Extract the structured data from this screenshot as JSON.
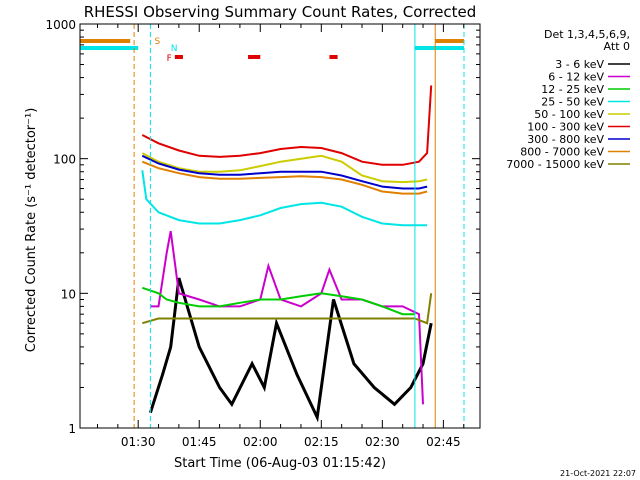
{
  "chart_data": {
    "type": "line",
    "title": "RHESSI Observing Summary Count Rates, Corrected",
    "xlabel": "Start Time (06-Aug-03 01:15:42)",
    "ylabel": "Corrected Count Rate (s⁻¹ detector⁻¹)",
    "y_scale": "log",
    "ylim": [
      1,
      1000
    ],
    "xlim": [
      "01:15:42",
      "02:54:00"
    ],
    "x_ticks": [
      "01:30",
      "01:45",
      "02:00",
      "02:15",
      "02:30",
      "02:45"
    ],
    "y_ticks": [
      "1",
      "10",
      "100",
      "1000"
    ],
    "legend_header": [
      "Det 1,3,4,5,6,9,",
      "Att 0"
    ],
    "legend_position": "right",
    "footer_date": "21-Oct-2021 22:07",
    "flag_labels": {
      "saa": "S",
      "night": "N",
      "flare": "F"
    },
    "series": [
      {
        "name": "3 - 6 keV",
        "color": "#000000",
        "x": [
          "01:33",
          "01:36",
          "01:38",
          "01:40",
          "01:45",
          "01:50",
          "01:53",
          "01:58",
          "02:01",
          "02:04",
          "02:09",
          "02:14",
          "02:18",
          "02:23",
          "02:28",
          "02:33",
          "02:37",
          "02:40",
          "02:42"
        ],
        "y": [
          1.3,
          2.5,
          4,
          13,
          4,
          2,
          1.5,
          3,
          2,
          6,
          2.5,
          1.2,
          9,
          3,
          2,
          1.5,
          2,
          3,
          6
        ]
      },
      {
        "name": "6 - 12 keV",
        "color": "#cc00cc",
        "x": [
          "01:33",
          "01:35",
          "01:37",
          "01:38",
          "01:40",
          "01:45",
          "01:50",
          "01:55",
          "02:00",
          "02:02",
          "02:05",
          "02:10",
          "02:15",
          "02:17",
          "02:20",
          "02:25",
          "02:30",
          "02:35",
          "02:39",
          "02:40"
        ],
        "y": [
          8,
          8,
          20,
          29,
          10,
          9,
          8,
          8,
          9,
          16,
          9,
          8,
          10,
          15,
          9,
          9,
          8,
          8,
          7,
          1.5
        ]
      },
      {
        "name": "12 - 25 keV",
        "color": "#00cc00",
        "x": [
          "01:31",
          "01:35",
          "01:37",
          "01:40",
          "01:45",
          "01:50",
          "01:55",
          "02:00",
          "02:05",
          "02:10",
          "02:15",
          "02:20",
          "02:25",
          "02:30",
          "02:35",
          "02:38"
        ],
        "y": [
          11,
          10,
          9,
          8.5,
          8,
          8,
          8.5,
          9,
          9,
          9.5,
          10,
          9.5,
          9,
          8,
          7,
          7
        ]
      },
      {
        "name": "25 - 50 keV",
        "color": "#00e5e5",
        "x": [
          "01:31",
          "01:32",
          "01:35",
          "01:40",
          "01:45",
          "01:50",
          "01:55",
          "02:00",
          "02:05",
          "02:10",
          "02:15",
          "02:20",
          "02:25",
          "02:30",
          "02:35",
          "02:39",
          "02:41"
        ],
        "y": [
          82,
          50,
          40,
          35,
          33,
          33,
          35,
          38,
          43,
          46,
          47,
          44,
          37,
          33,
          32,
          32,
          32
        ]
      },
      {
        "name": "50 - 100 keV",
        "color": "#cccc00",
        "x": [
          "01:31",
          "01:35",
          "01:40",
          "01:45",
          "01:50",
          "01:55",
          "02:00",
          "02:05",
          "02:10",
          "02:15",
          "02:20",
          "02:25",
          "02:30",
          "02:35",
          "02:39",
          "02:41"
        ],
        "y": [
          110,
          95,
          85,
          80,
          80,
          82,
          88,
          95,
          100,
          105,
          95,
          75,
          68,
          67,
          68,
          70
        ]
      },
      {
        "name": "100 - 300 keV",
        "color": "#e00000",
        "x": [
          "01:31",
          "01:35",
          "01:40",
          "01:45",
          "01:50",
          "01:55",
          "02:00",
          "02:05",
          "02:10",
          "02:15",
          "02:20",
          "02:25",
          "02:30",
          "02:35",
          "02:39",
          "02:41",
          "02:42"
        ],
        "y": [
          150,
          130,
          115,
          105,
          103,
          105,
          110,
          118,
          122,
          120,
          110,
          95,
          90,
          90,
          95,
          110,
          350
        ]
      },
      {
        "name": "300 - 800 keV",
        "color": "#0000cc",
        "x": [
          "01:31",
          "01:35",
          "01:40",
          "01:45",
          "01:50",
          "01:55",
          "02:00",
          "02:05",
          "02:10",
          "02:15",
          "02:20",
          "02:25",
          "02:30",
          "02:35",
          "02:39",
          "02:41"
        ],
        "y": [
          105,
          92,
          83,
          78,
          76,
          76,
          78,
          80,
          80,
          80,
          75,
          68,
          62,
          60,
          60,
          62
        ]
      },
      {
        "name": "800 - 7000 keV",
        "color": "#e08000",
        "x": [
          "01:31",
          "01:35",
          "01:40",
          "01:45",
          "01:50",
          "01:55",
          "02:00",
          "02:05",
          "02:10",
          "02:15",
          "02:20",
          "02:25",
          "02:30",
          "02:35",
          "02:39",
          "02:41"
        ],
        "y": [
          95,
          85,
          78,
          73,
          71,
          71,
          72,
          73,
          74,
          73,
          70,
          64,
          57,
          55,
          55,
          57
        ]
      },
      {
        "name": "7000 - 15000 keV",
        "color": "#808000",
        "x": [
          "01:31",
          "01:35",
          "01:40",
          "01:45",
          "01:50",
          "01:55",
          "02:00",
          "02:05",
          "02:10",
          "02:15",
          "02:20",
          "02:25",
          "02:30",
          "02:35",
          "02:38",
          "02:41",
          "02:42"
        ],
        "y": [
          6,
          6.5,
          6.5,
          6.5,
          6.5,
          6.5,
          6.5,
          6.5,
          6.5,
          6.5,
          6.5,
          6.5,
          6.5,
          6.5,
          6.5,
          6,
          10
        ]
      }
    ]
  }
}
